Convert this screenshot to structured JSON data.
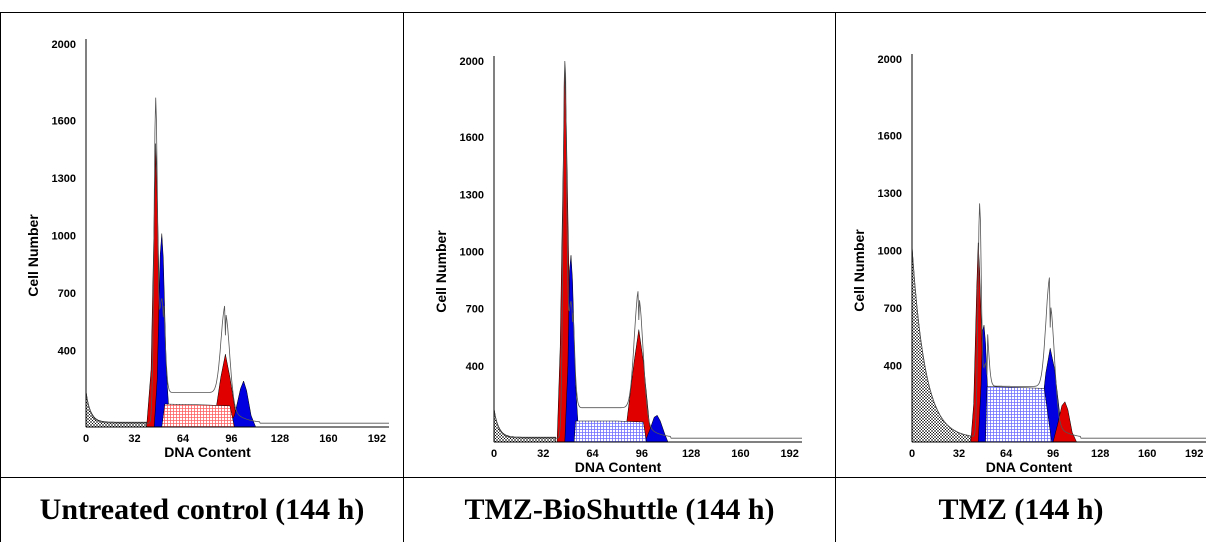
{
  "panels": [
    {
      "caption": "Untreated control (144 h)",
      "chart_data": {
        "type": "area",
        "xlabel": "DNA Content",
        "ylabel": "Cell Number",
        "xlim": [
          0,
          200
        ],
        "ylim": [
          0,
          2000
        ],
        "xticks": [
          "0",
          "32",
          "64",
          "96",
          "128",
          "160",
          "192"
        ],
        "yticks": [
          "400",
          "700",
          "1000",
          "1300",
          "1600",
          "2000"
        ],
        "debris_start": 160,
        "peaks": {
          "g1_x": 46,
          "g1_y": 1650,
          "g2_x": 92,
          "g2_y": 540,
          "g1_shoulder_y": 1180
        },
        "series": [
          {
            "name": "",
            "fill": "#e00000",
            "points": [
              [
                40,
                0
              ],
              [
                43,
                300
              ],
              [
                45,
                1100
              ],
              [
                46,
                1480
              ],
              [
                47,
                1200
              ],
              [
                49,
                500
              ],
              [
                51,
                80
              ],
              [
                53,
                0
              ]
            ]
          },
          {
            "name": "",
            "fill": "#0000e0",
            "points": [
              [
                45,
                0
              ],
              [
                47,
                250
              ],
              [
                49,
                900
              ],
              [
                50,
                1010
              ],
              [
                51,
                880
              ],
              [
                53,
                300
              ],
              [
                55,
                50
              ],
              [
                56,
                0
              ]
            ]
          },
          {
            "name": "",
            "fill": "#e00000",
            "points": [
              [
                80,
                0
              ],
              [
                85,
                50
              ],
              [
                89,
                260
              ],
              [
                92,
                380
              ],
              [
                95,
                260
              ],
              [
                99,
                60
              ],
              [
                102,
                0
              ]
            ]
          },
          {
            "name": "",
            "fill": "#0000e0",
            "points": [
              [
                94,
                0
              ],
              [
                98,
                60
              ],
              [
                102,
                200
              ],
              [
                104,
                240
              ],
              [
                106,
                190
              ],
              [
                109,
                60
              ],
              [
                112,
                0
              ]
            ]
          },
          {
            "name": "",
            "fill": "#ff6060",
            "hatch": true,
            "points": [
              [
                50,
                0
              ],
              [
                52,
                120
              ],
              [
                80,
                115
              ],
              [
                95,
                110
              ],
              [
                98,
                0
              ]
            ]
          }
        ]
      }
    },
    {
      "caption": "TMZ-BioShuttle (144 h)",
      "chart_data": {
        "type": "area",
        "xlabel": "DNA Content",
        "ylabel": "Cell Number",
        "xlim": [
          0,
          200
        ],
        "ylim": [
          0,
          2000
        ],
        "xticks": [
          "0",
          "32",
          "64",
          "96",
          "128",
          "160",
          "192"
        ],
        "yticks": [
          "400",
          "700",
          "1000",
          "1300",
          "1600",
          "2000"
        ],
        "debris_start": 150,
        "peaks": {
          "g1_x": 46,
          "g1_y": 2000,
          "g2_x": 94,
          "g2_y": 730,
          "g1_shoulder_y": 1300
        },
        "series": [
          {
            "name": "",
            "fill": "#e00000",
            "points": [
              [
                41,
                0
              ],
              [
                43,
                500
              ],
              [
                45,
                1500
              ],
              [
                46,
                1980
              ],
              [
                47,
                1650
              ],
              [
                49,
                700
              ],
              [
                51,
                100
              ],
              [
                52,
                0
              ]
            ]
          },
          {
            "name": "",
            "fill": "#0000e0",
            "points": [
              [
                46,
                0
              ],
              [
                48,
                400
              ],
              [
                49,
                900
              ],
              [
                50,
                980
              ],
              [
                51,
                850
              ],
              [
                53,
                300
              ],
              [
                55,
                40
              ],
              [
                56,
                0
              ]
            ]
          },
          {
            "name": "",
            "fill": "#e00000",
            "points": [
              [
                80,
                0
              ],
              [
                86,
                90
              ],
              [
                91,
                420
              ],
              [
                94,
                590
              ],
              [
                97,
                420
              ],
              [
                101,
                90
              ],
              [
                104,
                0
              ]
            ]
          },
          {
            "name": "",
            "fill": "#0000e0",
            "points": [
              [
                98,
                0
              ],
              [
                101,
                60
              ],
              [
                104,
                130
              ],
              [
                106,
                140
              ],
              [
                108,
                110
              ],
              [
                111,
                40
              ],
              [
                113,
                0
              ]
            ]
          },
          {
            "name": "",
            "fill": "#7070ff",
            "hatch": true,
            "points": [
              [
                52,
                0
              ],
              [
                53,
                110
              ],
              [
                80,
                110
              ],
              [
                97,
                105
              ],
              [
                99,
                0
              ]
            ]
          }
        ]
      }
    },
    {
      "caption": "TMZ (144 h)",
      "chart_data": {
        "type": "area",
        "xlabel": "DNA Content",
        "ylabel": "Cell Number",
        "xlim": [
          0,
          200
        ],
        "ylim": [
          0,
          2000
        ],
        "xticks": [
          "0",
          "32",
          "64",
          "96",
          "128",
          "160",
          "192"
        ],
        "yticks": [
          "400",
          "700",
          "1000",
          "1300",
          "1600",
          "2000"
        ],
        "debris_start": 1000,
        "peaks": {
          "g1_x": 46,
          "g1_y": 1190,
          "g2_x": 94,
          "g2_y": 680,
          "g1_shoulder_y": 700
        },
        "series": [
          {
            "name": "",
            "fill": "#e00000",
            "points": [
              [
                40,
                0
              ],
              [
                42,
                200
              ],
              [
                44,
                800
              ],
              [
                45,
                1040
              ],
              [
                46,
                900
              ],
              [
                48,
                400
              ],
              [
                50,
                60
              ],
              [
                51,
                0
              ]
            ]
          },
          {
            "name": "",
            "fill": "#0000e0",
            "points": [
              [
                45,
                0
              ],
              [
                47,
                300
              ],
              [
                48,
                580
              ],
              [
                49,
                610
              ],
              [
                50,
                520
              ],
              [
                52,
                180
              ],
              [
                54,
                20
              ],
              [
                55,
                0
              ]
            ]
          },
          {
            "name": "",
            "fill": "#0000e0",
            "points": [
              [
                82,
                0
              ],
              [
                87,
                80
              ],
              [
                91,
                360
              ],
              [
                94,
                490
              ],
              [
                97,
                380
              ],
              [
                101,
                110
              ],
              [
                104,
                0
              ]
            ]
          },
          {
            "name": "",
            "fill": "#e00000",
            "points": [
              [
                96,
                0
              ],
              [
                99,
                90
              ],
              [
                102,
                190
              ],
              [
                104,
                210
              ],
              [
                106,
                170
              ],
              [
                109,
                50
              ],
              [
                112,
                0
              ]
            ]
          },
          {
            "name": "",
            "fill": "#7070ff",
            "hatch": true,
            "points": [
              [
                50,
                0
              ],
              [
                51,
                290
              ],
              [
                70,
                285
              ],
              [
                90,
                280
              ],
              [
                95,
                0
              ]
            ]
          }
        ]
      }
    }
  ]
}
